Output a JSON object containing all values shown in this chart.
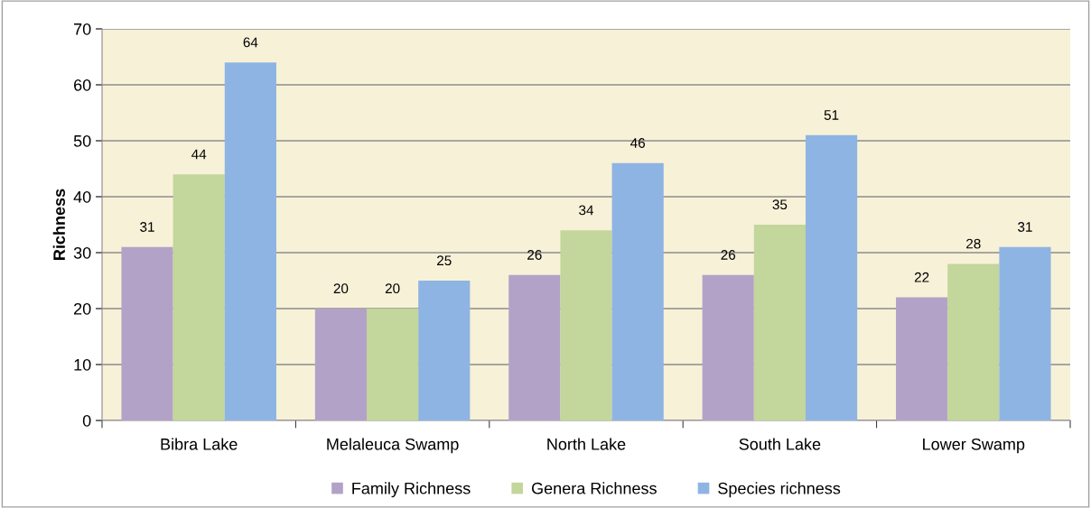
{
  "chart_data": {
    "type": "bar",
    "ylabel": "Richness",
    "categories": [
      "Bibra Lake",
      "Melaleuca Swamp",
      "North Lake",
      "South Lake",
      "Lower Swamp"
    ],
    "series": [
      {
        "name": "Family Richness",
        "color": "#b3a2c7",
        "values": [
          31,
          20,
          26,
          26,
          22
        ]
      },
      {
        "name": "Genera Richness",
        "color": "#c3d69b",
        "values": [
          44,
          20,
          34,
          35,
          28
        ]
      },
      {
        "name": "Species richness",
        "color": "#8eb4e3",
        "values": [
          64,
          25,
          46,
          51,
          31
        ]
      }
    ],
    "ylim": [
      0,
      70
    ],
    "yticks": [
      0,
      10,
      20,
      30,
      40,
      50,
      60,
      70
    ],
    "grid": "y",
    "legend": "bottom",
    "data_labels": true
  }
}
